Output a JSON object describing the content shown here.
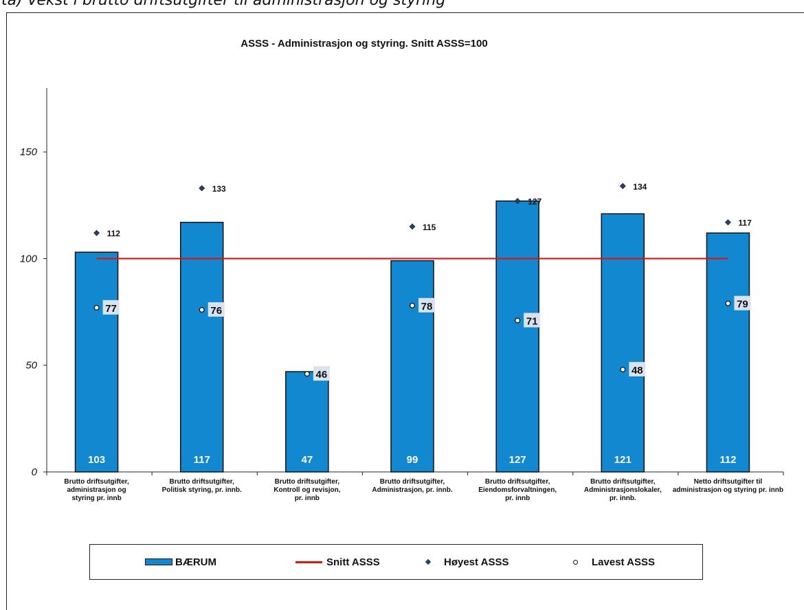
{
  "header_caption": "ta) Vekst i brutto driftsutgifter til administrasjon og styring",
  "chart_data": {
    "type": "bar",
    "title": "ASSS - Administrasjon og styring. Snitt ASSS=100",
    "xlabel": "",
    "ylabel": "",
    "ylim": [
      0,
      180
    ],
    "yticks": [
      0,
      50,
      100,
      150
    ],
    "categories": [
      [
        "Brutto driftsutgifter,",
        "administrasjon og",
        "styring pr. innb"
      ],
      [
        "Brutto driftsutgifter,",
        "Politisk styring, pr. innb."
      ],
      [
        "Brutto driftsutgifter,",
        "Kontroll og revisjon,",
        "pr. innb"
      ],
      [
        "Brutto driftsutgifter,",
        "Administrasjon, pr. innb."
      ],
      [
        "Brutto driftsutgifter,",
        "Eiendomsforvaltningen,",
        "pr. innb"
      ],
      [
        "Brutto driftsutgifter,",
        "Administrasjonslokaler,",
        "pr. innb."
      ],
      [
        "Netto driftsutgifter til",
        "administrasjon og styring pr. innb"
      ]
    ],
    "series": [
      {
        "name": "BÆRUM",
        "kind": "bar",
        "color": "#1288d0",
        "values": [
          103,
          117,
          47,
          99,
          127,
          121,
          112
        ]
      },
      {
        "name": "Snitt ASSS",
        "kind": "line",
        "color": "#e3120b",
        "values": [
          100,
          100,
          100,
          100,
          100,
          100,
          100
        ]
      },
      {
        "name": "Høyest ASSS",
        "kind": "marker-diamond",
        "color": "#27406e",
        "values": [
          112,
          133,
          null,
          115,
          127,
          134,
          117
        ]
      },
      {
        "name": "Lavest ASSS",
        "kind": "marker-circle",
        "color": "#ffffff",
        "values": [
          77,
          76,
          46,
          78,
          71,
          48,
          79
        ]
      }
    ],
    "grid": false,
    "legend_position": "bottom"
  }
}
